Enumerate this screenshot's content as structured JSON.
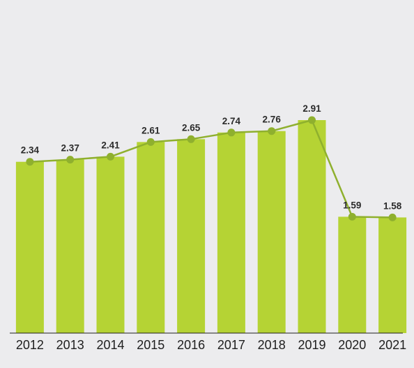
{
  "chart_data": {
    "type": "bar",
    "title": "",
    "xlabel": "",
    "ylabel": "",
    "categories": [
      "2012",
      "2013",
      "2014",
      "2015",
      "2016",
      "2017",
      "2018",
      "2019",
      "2020",
      "2021"
    ],
    "values": [
      2.34,
      2.37,
      2.41,
      2.61,
      2.65,
      2.74,
      2.76,
      2.91,
      1.59,
      1.58
    ],
    "data_labels": [
      "2.34",
      "2.37",
      "2.41",
      "2.61",
      "2.65",
      "2.74",
      "2.76",
      "2.91",
      "1.59",
      "1.58"
    ],
    "overlay": "line-with-markers",
    "ylim": [
      0,
      3.6
    ],
    "grid": false,
    "legend": "none",
    "colors": {
      "bar": "#b5d334",
      "line": "#8fb02e",
      "background": "#ececee"
    }
  }
}
